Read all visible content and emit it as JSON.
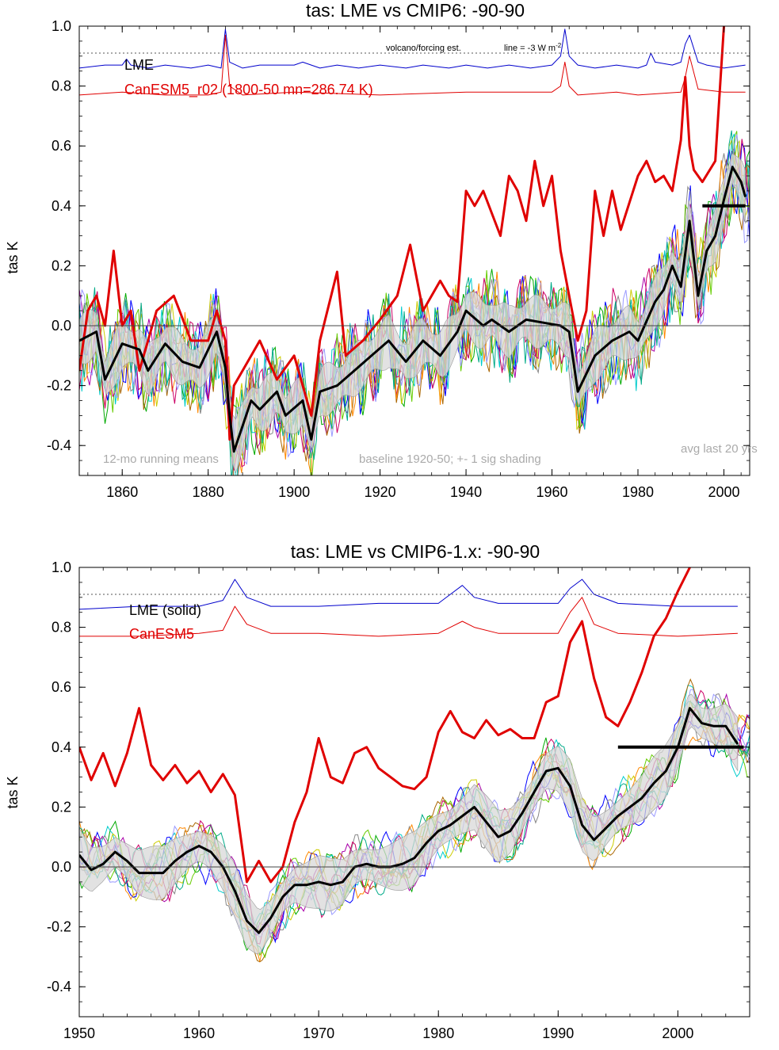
{
  "colors": {
    "lme_index": "#0000cc",
    "canesm5": "#e00000",
    "lme_mean": "#000000",
    "shading": "#d8d8d8",
    "note_text": "#aaaaaa",
    "member_palette": [
      "#00aa00",
      "#aa00aa",
      "#00cccc",
      "#cccc00",
      "#aa6600",
      "#0000ff",
      "#888888",
      "#ff8800",
      "#66cc00",
      "#cc0066",
      "#9999ff",
      "#00aa88"
    ]
  },
  "chart_data": [
    {
      "type": "line",
      "title": "tas: LME vs CMIP6: -90-90",
      "ylabel": "tas K",
      "xlim": [
        1850,
        2006
      ],
      "ylim": [
        -0.5,
        1.0
      ],
      "xticks": [
        1860,
        1880,
        1900,
        1920,
        1940,
        1960,
        1980,
        2000
      ],
      "xtick_labels": [
        "1860",
        "1880",
        "1900",
        "1920",
        "1940",
        "1960",
        "1980",
        "2000"
      ],
      "yticks": [
        -0.4,
        -0.2,
        0.0,
        0.2,
        0.4,
        0.6,
        0.8,
        1.0
      ],
      "ytick_labels": [
        "-0.4",
        "-0.2",
        "0.0",
        "0.2",
        "0.4",
        "0.6",
        "0.8",
        "1.0"
      ],
      "legend": [
        "LME",
        "CanESM5_r02 (1800-50 mn=286.74 K)"
      ],
      "annotations": {
        "forcing": "volcano/forcing est.",
        "line": "line = -3 W m",
        "line_sup": "-2",
        "running": "12-mo running means",
        "baseline": "baseline 1920-50; +- 1 sig shading",
        "avg": "avg last 20 yrs"
      },
      "dotted_line_y": 0.91,
      "avg_last20": {
        "x": [
          1995,
          2005
        ],
        "y": 0.4
      },
      "series": [
        {
          "name": "LME",
          "role": "mean",
          "x": [
            1850,
            1854,
            1856,
            1860,
            1864,
            1866,
            1870,
            1874,
            1878,
            1882,
            1884,
            1885,
            1886,
            1890,
            1892,
            1896,
            1898,
            1902,
            1904,
            1906,
            1910,
            1914,
            1918,
            1922,
            1926,
            1930,
            1934,
            1938,
            1940,
            1944,
            1946,
            1950,
            1954,
            1958,
            1962,
            1964,
            1966,
            1970,
            1974,
            1978,
            1980,
            1984,
            1986,
            1988,
            1990,
            1992,
            1994,
            1996,
            1998,
            2000,
            2002,
            2004,
            2005
          ],
          "y": [
            -0.05,
            -0.02,
            -0.18,
            -0.06,
            -0.08,
            -0.15,
            -0.06,
            -0.12,
            -0.14,
            -0.02,
            -0.14,
            -0.3,
            -0.42,
            -0.25,
            -0.28,
            -0.22,
            -0.3,
            -0.25,
            -0.38,
            -0.22,
            -0.2,
            -0.15,
            -0.1,
            -0.05,
            -0.12,
            -0.05,
            -0.1,
            -0.02,
            0.05,
            0.0,
            0.02,
            -0.02,
            0.02,
            0.01,
            0.0,
            -0.02,
            -0.22,
            -0.1,
            -0.05,
            -0.02,
            -0.05,
            0.08,
            0.12,
            0.2,
            0.13,
            0.35,
            0.1,
            0.25,
            0.3,
            0.42,
            0.53,
            0.48,
            0.43
          ]
        },
        {
          "name": "CanESM5_r02 (1800-50 mn=286.74 K)",
          "role": "model",
          "x": [
            1850,
            1852,
            1854,
            1856,
            1858,
            1860,
            1862,
            1864,
            1868,
            1872,
            1876,
            1880,
            1882,
            1884,
            1885,
            1886,
            1888,
            1892,
            1896,
            1900,
            1902,
            1904,
            1906,
            1910,
            1912,
            1916,
            1920,
            1924,
            1927,
            1930,
            1934,
            1936,
            1938,
            1940,
            1942,
            1944,
            1948,
            1950,
            1952,
            1954,
            1956,
            1958,
            1960,
            1962,
            1964,
            1966,
            1968,
            1970,
            1972,
            1974,
            1976,
            1980,
            1982,
            1984,
            1986,
            1988,
            1990,
            1991,
            1992,
            1993,
            1995,
            1998,
            2000
          ],
          "y": [
            -0.15,
            0.05,
            0.1,
            0.0,
            0.25,
            0.0,
            0.05,
            -0.15,
            0.05,
            0.1,
            -0.05,
            -0.05,
            0.05,
            -0.05,
            -0.38,
            -0.2,
            -0.15,
            -0.05,
            -0.18,
            -0.1,
            -0.2,
            -0.3,
            -0.05,
            0.18,
            -0.1,
            -0.05,
            0.02,
            0.1,
            0.27,
            0.05,
            0.15,
            0.1,
            0.08,
            0.45,
            0.4,
            0.45,
            0.3,
            0.5,
            0.45,
            0.35,
            0.55,
            0.4,
            0.5,
            0.25,
            0.1,
            -0.05,
            0.05,
            0.45,
            0.3,
            0.45,
            0.32,
            0.5,
            0.55,
            0.48,
            0.5,
            0.45,
            0.62,
            0.83,
            0.6,
            0.52,
            0.48,
            0.55,
            1.0
          ]
        },
        {
          "name": "",
          "role": "index_blue",
          "x": [
            1850,
            1856,
            1860,
            1861,
            1862,
            1866,
            1870,
            1876,
            1880,
            1883,
            1884,
            1885,
            1888,
            1892,
            1900,
            1902,
            1904,
            1906,
            1910,
            1915,
            1920,
            1926,
            1930,
            1936,
            1940,
            1945,
            1950,
            1955,
            1960,
            1962,
            1963,
            1964,
            1966,
            1970,
            1975,
            1980,
            1982,
            1983,
            1984,
            1988,
            1990,
            1991,
            1992,
            1994,
            1996,
            2000,
            2005
          ],
          "y": [
            0.86,
            0.87,
            0.87,
            0.89,
            0.87,
            0.86,
            0.87,
            0.86,
            0.87,
            0.86,
            0.99,
            0.88,
            0.86,
            0.87,
            0.87,
            0.88,
            0.87,
            0.86,
            0.87,
            0.86,
            0.87,
            0.86,
            0.87,
            0.86,
            0.87,
            0.86,
            0.87,
            0.86,
            0.87,
            0.9,
            0.99,
            0.9,
            0.87,
            0.86,
            0.87,
            0.86,
            0.87,
            0.91,
            0.88,
            0.87,
            0.88,
            0.94,
            0.97,
            0.88,
            0.87,
            0.86,
            0.87
          ]
        },
        {
          "name": "",
          "role": "index_red",
          "x": [
            1850,
            1860,
            1870,
            1880,
            1883,
            1884,
            1885,
            1888,
            1900,
            1920,
            1940,
            1960,
            1962,
            1963,
            1964,
            1966,
            1975,
            1980,
            1990,
            1991,
            1992,
            1994,
            2000,
            2005
          ],
          "y": [
            0.77,
            0.78,
            0.77,
            0.77,
            0.78,
            0.97,
            0.8,
            0.77,
            0.78,
            0.77,
            0.78,
            0.78,
            0.8,
            0.88,
            0.8,
            0.77,
            0.78,
            0.77,
            0.78,
            0.83,
            0.9,
            0.79,
            0.78,
            0.78
          ]
        }
      ]
    },
    {
      "type": "line",
      "title": "tas: LME vs CMIP6-1.x: -90-90",
      "ylabel": "tas K",
      "xlim": [
        1950,
        2006
      ],
      "ylim": [
        -0.5,
        1.0
      ],
      "xticks": [
        1950,
        1960,
        1970,
        1980,
        1990,
        2000
      ],
      "xtick_labels": [
        "1950",
        "1960",
        "1970",
        "1980",
        "1990",
        "2000"
      ],
      "yticks": [
        -0.4,
        -0.2,
        0.0,
        0.2,
        0.4,
        0.6,
        0.8,
        1.0
      ],
      "ytick_labels": [
        "-0.4",
        "-0.2",
        "0.0",
        "0.2",
        "0.4",
        "0.6",
        "0.8",
        "1.0"
      ],
      "legend": [
        "LME (solid)",
        "CanESM5"
      ],
      "dotted_line_y": 0.91,
      "avg_last20": {
        "x": [
          1995,
          2005.5
        ],
        "y": 0.4
      },
      "series": [
        {
          "name": "LME (solid)",
          "role": "mean",
          "x": [
            1950,
            1951,
            1952,
            1953,
            1954,
            1955,
            1956,
            1957,
            1958,
            1959,
            1960,
            1961,
            1962,
            1963,
            1964,
            1965,
            1966,
            1967,
            1968,
            1969,
            1970,
            1971,
            1972,
            1973,
            1974,
            1975,
            1976,
            1977,
            1978,
            1979,
            1980,
            1981,
            1982,
            1983,
            1984,
            1985,
            1986,
            1987,
            1988,
            1989,
            1990,
            1991,
            1992,
            1993,
            1994,
            1995,
            1996,
            1997,
            1998,
            1999,
            2000,
            2001,
            2002,
            2003,
            2004,
            2005
          ],
          "y": [
            0.04,
            -0.01,
            0.01,
            0.05,
            0.02,
            -0.02,
            -0.02,
            -0.02,
            0.02,
            0.05,
            0.07,
            0.05,
            0.0,
            -0.08,
            -0.18,
            -0.22,
            -0.17,
            -0.1,
            -0.06,
            -0.06,
            -0.05,
            -0.06,
            -0.05,
            0.0,
            0.01,
            0.0,
            0.0,
            0.01,
            0.03,
            0.08,
            0.12,
            0.14,
            0.17,
            0.2,
            0.15,
            0.1,
            0.12,
            0.18,
            0.25,
            0.32,
            0.33,
            0.27,
            0.14,
            0.09,
            0.13,
            0.17,
            0.2,
            0.23,
            0.28,
            0.32,
            0.4,
            0.53,
            0.48,
            0.47,
            0.47,
            0.41
          ]
        },
        {
          "name": "CanESM5",
          "role": "model",
          "x": [
            1950,
            1951,
            1952,
            1953,
            1954,
            1955,
            1956,
            1957,
            1958,
            1959,
            1960,
            1961,
            1962,
            1963,
            1964,
            1965,
            1966,
            1967,
            1968,
            1969,
            1970,
            1971,
            1972,
            1973,
            1974,
            1975,
            1976,
            1977,
            1978,
            1979,
            1980,
            1981,
            1982,
            1983,
            1984,
            1985,
            1986,
            1987,
            1988,
            1989,
            1990,
            1991,
            1992,
            1993,
            1994,
            1995,
            1996,
            1997,
            1998,
            1999,
            2000,
            2001
          ],
          "y": [
            0.4,
            0.29,
            0.38,
            0.27,
            0.38,
            0.53,
            0.34,
            0.29,
            0.34,
            0.28,
            0.32,
            0.25,
            0.31,
            0.24,
            -0.05,
            0.02,
            -0.05,
            0.0,
            0.15,
            0.25,
            0.43,
            0.3,
            0.28,
            0.38,
            0.4,
            0.33,
            0.3,
            0.27,
            0.26,
            0.3,
            0.45,
            0.52,
            0.45,
            0.43,
            0.49,
            0.44,
            0.46,
            0.43,
            0.43,
            0.55,
            0.57,
            0.75,
            0.82,
            0.63,
            0.5,
            0.47,
            0.55,
            0.65,
            0.77,
            0.83,
            0.92,
            1.0
          ]
        },
        {
          "name": "",
          "role": "index_blue",
          "x": [
            1950,
            1955,
            1960,
            1962,
            1963,
            1964,
            1966,
            1970,
            1975,
            1980,
            1981,
            1982,
            1983,
            1985,
            1990,
            1991,
            1992,
            1993,
            1995,
            2000,
            2005
          ],
          "y": [
            0.86,
            0.87,
            0.87,
            0.89,
            0.96,
            0.9,
            0.87,
            0.87,
            0.88,
            0.88,
            0.91,
            0.94,
            0.9,
            0.88,
            0.88,
            0.93,
            0.96,
            0.91,
            0.88,
            0.87,
            0.87
          ]
        },
        {
          "name": "",
          "role": "index_red",
          "x": [
            1950,
            1955,
            1960,
            1962,
            1963,
            1964,
            1966,
            1970,
            1975,
            1980,
            1981,
            1982,
            1983,
            1985,
            1990,
            1991,
            1992,
            1993,
            1995,
            2000,
            2005
          ],
          "y": [
            0.77,
            0.77,
            0.78,
            0.79,
            0.87,
            0.81,
            0.78,
            0.78,
            0.77,
            0.78,
            0.8,
            0.82,
            0.8,
            0.78,
            0.78,
            0.85,
            0.9,
            0.81,
            0.78,
            0.77,
            0.78
          ]
        }
      ]
    }
  ]
}
